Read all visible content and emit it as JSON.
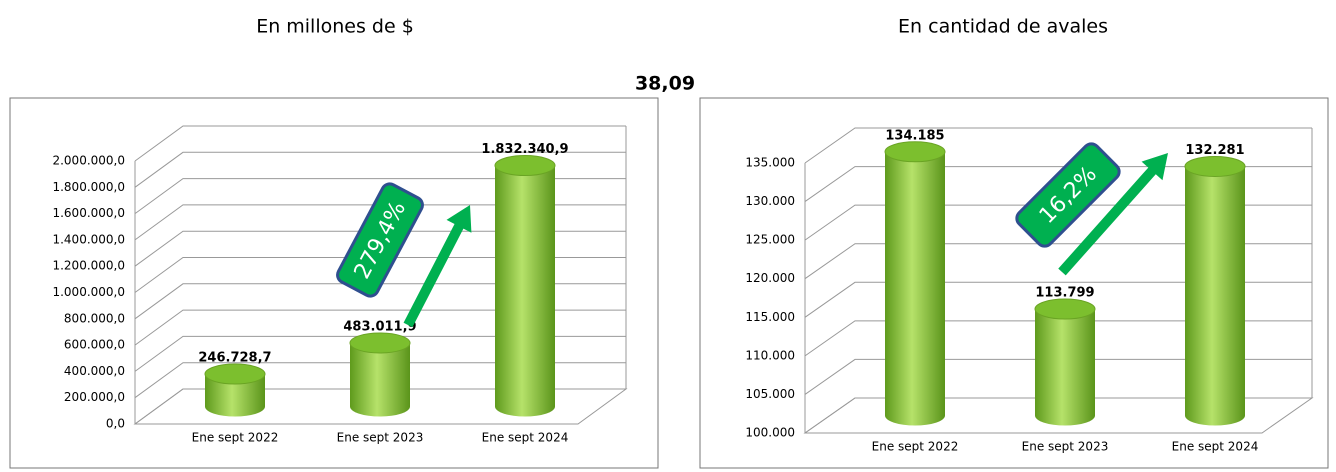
{
  "note": "38,09",
  "chart_data": [
    {
      "type": "bar",
      "subtitle": "En millones de $",
      "categories": [
        "Ene sept 2022",
        "Ene sept 2023",
        "Ene sept 2024"
      ],
      "values": [
        246728.7,
        483011.9,
        1832340.9
      ],
      "value_labels": [
        "246.728,7",
        "483.011,9",
        "1.832.340,9"
      ],
      "color": "#7cbf2e",
      "arrow_color": "#00b050",
      "annotation": "279,4%",
      "ylim": [
        0,
        2000000
      ],
      "yticks": [
        {
          "value": 0,
          "label": "0,0"
        },
        {
          "value": 200000,
          "label": "200.000,0"
        },
        {
          "value": 400000,
          "label": "400.000,0"
        },
        {
          "value": 600000,
          "label": "600.000,0"
        },
        {
          "value": 800000,
          "label": "800.000,0"
        },
        {
          "value": 1000000,
          "label": "1.000.000,0"
        },
        {
          "value": 1200000,
          "label": "1.200.000,0"
        },
        {
          "value": 1400000,
          "label": "1.400.000,0"
        },
        {
          "value": 1600000,
          "label": "1.600.000,0"
        },
        {
          "value": 1800000,
          "label": "1.800.000,0"
        },
        {
          "value": 2000000,
          "label": "2.000.000,0"
        }
      ],
      "grid": true
    },
    {
      "type": "bar",
      "subtitle": "En cantidad de avales",
      "categories": [
        "Ene sept 2022",
        "Ene sept 2023",
        "Ene sept 2024"
      ],
      "values": [
        134185,
        113799,
        132281
      ],
      "value_labels": [
        "134.185",
        "113.799",
        "132.281"
      ],
      "color": "#7cbf2e",
      "arrow_color": "#00b050",
      "annotation": "16,2%",
      "ylim": [
        100000,
        135000
      ],
      "yticks": [
        {
          "value": 100000,
          "label": "100.000"
        },
        {
          "value": 105000,
          "label": "105.000"
        },
        {
          "value": 110000,
          "label": "110.000"
        },
        {
          "value": 115000,
          "label": "115.000"
        },
        {
          "value": 120000,
          "label": "120.000"
        },
        {
          "value": 125000,
          "label": "125.000"
        },
        {
          "value": 130000,
          "label": "130.000"
        },
        {
          "value": 135000,
          "label": "135.000"
        }
      ],
      "grid": true
    }
  ]
}
